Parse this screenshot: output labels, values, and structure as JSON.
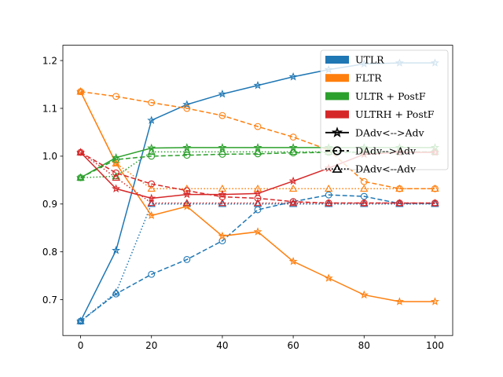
{
  "chart_data": {
    "type": "line",
    "title": "",
    "xlabel": "",
    "ylabel": "",
    "x": [
      0,
      10,
      20,
      30,
      40,
      50,
      60,
      70,
      80,
      90,
      100
    ],
    "xlim": [
      -5,
      105
    ],
    "ylim": [
      0.625,
      1.232
    ],
    "xticks": [
      "0",
      "20",
      "40",
      "60",
      "80",
      "100"
    ],
    "yticks": [
      "0.7",
      "0.8",
      "0.9",
      "1.0",
      "1.1",
      "1.2"
    ],
    "grid": false,
    "legend_position": "top-right",
    "colors": {
      "UTLR": "#1f77b4",
      "FLTR": "#ff7f0e",
      "ULTR + PostF": "#2ca02c",
      "ULTRH + PostF": "#d62728"
    },
    "series": [
      {
        "method": "UTLR",
        "setting": "DAdv<-->Adv",
        "values": [
          0.655,
          0.803,
          1.075,
          1.108,
          1.13,
          1.148,
          1.166,
          1.181,
          1.193,
          1.195,
          1.195
        ]
      },
      {
        "method": "UTLR",
        "setting": "DAdv-->Adv",
        "values": [
          0.655,
          0.712,
          0.753,
          0.784,
          0.823,
          0.888,
          0.905,
          0.919,
          0.916,
          0.901,
          0.901
        ]
      },
      {
        "method": "UTLR",
        "setting": "DAdv<--Adv",
        "values": [
          0.655,
          0.715,
          0.9,
          0.9,
          0.9,
          0.9,
          0.9,
          0.9,
          0.9,
          0.9,
          0.9
        ]
      },
      {
        "method": "FLTR",
        "setting": "DAdv<-->Adv",
        "values": [
          1.135,
          0.985,
          0.876,
          0.895,
          0.833,
          0.842,
          0.78,
          0.745,
          0.71,
          0.696,
          0.696
        ]
      },
      {
        "method": "FLTR",
        "setting": "DAdv-->Adv",
        "values": [
          1.135,
          1.125,
          1.112,
          1.1,
          1.085,
          1.062,
          1.04,
          1.013,
          0.947,
          0.932,
          0.932
        ]
      },
      {
        "method": "FLTR",
        "setting": "DAdv<--Adv",
        "values": [
          1.135,
          0.985,
          0.932,
          0.932,
          0.932,
          0.932,
          0.932,
          0.932,
          0.932,
          0.932,
          0.932
        ]
      },
      {
        "method": "ULTR + PostF",
        "setting": "DAdv<-->Adv",
        "values": [
          0.955,
          0.997,
          1.017,
          1.018,
          1.018,
          1.018,
          1.018,
          1.018,
          1.018,
          1.018,
          1.018
        ]
      },
      {
        "method": "ULTR + PostF",
        "setting": "DAdv-->Adv",
        "values": [
          0.955,
          0.993,
          1.0,
          1.002,
          1.004,
          1.005,
          1.007,
          1.008,
          1.008,
          1.009,
          1.009
        ]
      },
      {
        "method": "ULTR + PostF",
        "setting": "DAdv<--Adv",
        "values": [
          0.955,
          0.958,
          1.009,
          1.009,
          1.009,
          1.009,
          1.009,
          1.009,
          1.009,
          1.009,
          1.009
        ]
      },
      {
        "method": "ULTRH + PostF",
        "setting": "DAdv<-->Adv",
        "values": [
          1.008,
          0.932,
          0.912,
          0.92,
          0.92,
          0.922,
          0.948,
          0.975,
          1.004,
          1.008,
          1.008
        ]
      },
      {
        "method": "ULTRH + PostF",
        "setting": "DAdv-->Adv",
        "values": [
          1.008,
          0.965,
          0.942,
          0.928,
          0.915,
          0.912,
          0.905,
          0.902,
          0.902,
          0.902,
          0.902
        ]
      },
      {
        "method": "ULTRH + PostF",
        "setting": "DAdv<--Adv",
        "values": [
          1.008,
          0.955,
          0.902,
          0.902,
          0.902,
          0.902,
          0.902,
          0.902,
          0.902,
          0.902,
          0.902
        ]
      }
    ],
    "legend": [
      {
        "label": "UTLR",
        "kind": "patch",
        "color": "#1f77b4"
      },
      {
        "label": "FLTR",
        "kind": "patch",
        "color": "#ff7f0e"
      },
      {
        "label": "ULTR + PostF",
        "kind": "patch",
        "color": "#2ca02c"
      },
      {
        "label": "ULTRH + PostF",
        "kind": "patch",
        "color": "#d62728"
      },
      {
        "label": "DAdv<-->Adv",
        "kind": "line",
        "dash": "solid",
        "marker": "star"
      },
      {
        "label": "DAdv-->Adv",
        "kind": "line",
        "dash": "dashed",
        "marker": "circle"
      },
      {
        "label": "DAdv<--Adv",
        "kind": "line",
        "dash": "dotted",
        "marker": "triangle"
      }
    ]
  }
}
